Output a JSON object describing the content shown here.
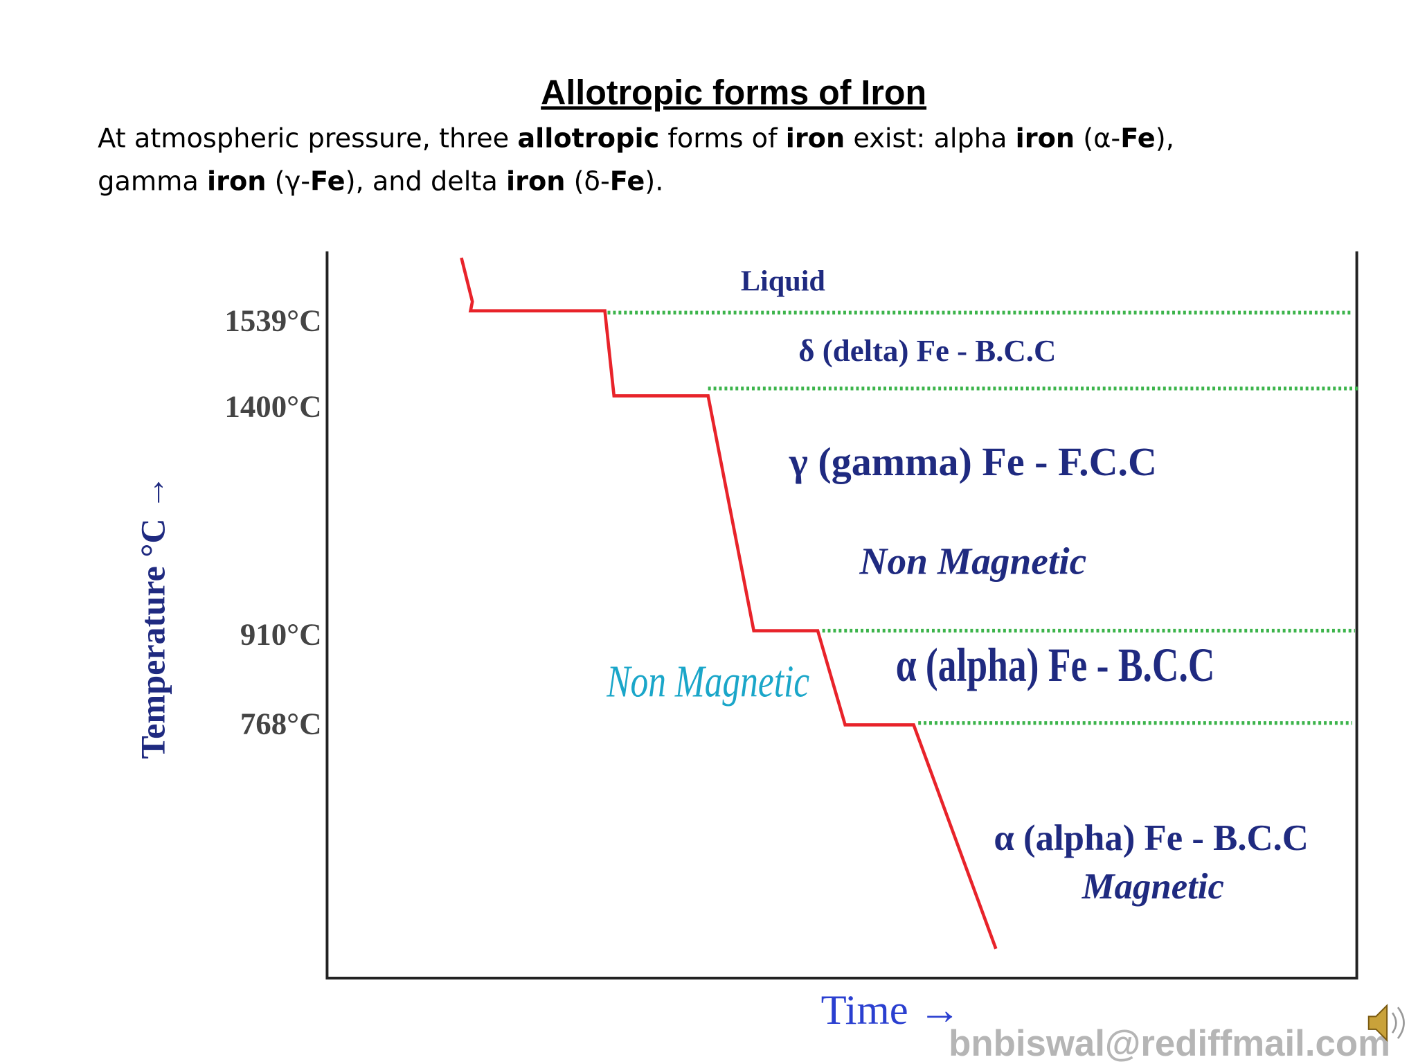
{
  "header": {
    "title": "Allotropic forms of Iron"
  },
  "intro": {
    "lines": [
      {
        "runs": [
          {
            "text": "At atmospheric pressure, three ",
            "bold": false
          },
          {
            "text": "allotropic",
            "bold": true
          },
          {
            "text": " forms of ",
            "bold": false
          },
          {
            "text": "iron",
            "bold": true
          },
          {
            "text": " exist: alpha ",
            "bold": false
          },
          {
            "text": "iron",
            "bold": true
          },
          {
            "text": " (α-",
            "bold": false
          },
          {
            "text": "Fe",
            "bold": true
          },
          {
            "text": "),",
            "bold": false
          }
        ]
      },
      {
        "runs": [
          {
            "text": "gamma ",
            "bold": false
          },
          {
            "text": "iron",
            "bold": true
          },
          {
            "text": " (γ-",
            "bold": false
          },
          {
            "text": "Fe",
            "bold": true
          },
          {
            "text": "), and delta ",
            "bold": false
          },
          {
            "text": "iron",
            "bold": true
          },
          {
            "text": " (δ-",
            "bold": false
          },
          {
            "text": "Fe",
            "bold": true
          },
          {
            "text": ").",
            "bold": false
          }
        ]
      }
    ]
  },
  "diagram": {
    "temperatures": [
      "1539°C",
      "1400°C",
      "910°C",
      "768°C"
    ],
    "regions": [
      "Liquid",
      "δ (delta) Fe - B.C.C",
      "γ (gamma) Fe - F.C.C",
      "Non Magnetic",
      "α (alpha) Fe - B.C.C",
      "Non Magnetic",
      "α (alpha) Fe - B.C.C",
      "Magnetic"
    ],
    "y_axis_label": "Temperature °C →",
    "x_axis_label": "Time →"
  },
  "footer": {
    "email": "bnbiswal@rediffmail.com"
  }
}
